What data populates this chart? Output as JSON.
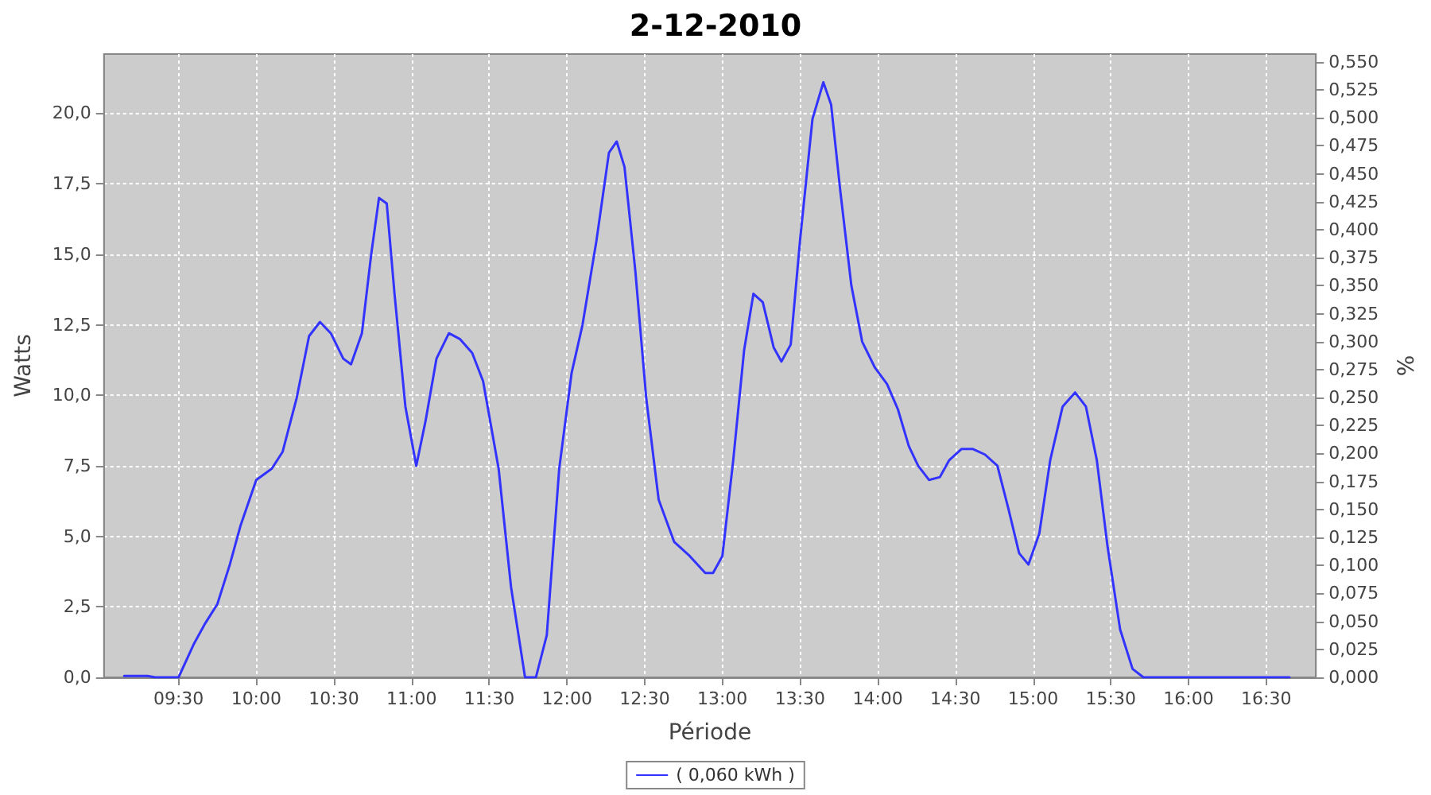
{
  "chart_data": {
    "type": "line",
    "title": "2-12-2010",
    "xlabel": "Période",
    "ylabel": "Watts",
    "y2label": "%",
    "xlim": [
      9.02,
      16.82
    ],
    "xticks": [
      {
        "value": 9.5,
        "label": "09:30"
      },
      {
        "value": 10,
        "label": "10:00"
      },
      {
        "value": 10.5,
        "label": "10:30"
      },
      {
        "value": 11,
        "label": "11:00"
      },
      {
        "value": 11.5,
        "label": "11:30"
      },
      {
        "value": 12,
        "label": "12:00"
      },
      {
        "value": 12.5,
        "label": "12:30"
      },
      {
        "value": 13,
        "label": "13:00"
      },
      {
        "value": 13.5,
        "label": "13:30"
      },
      {
        "value": 14,
        "label": "14:00"
      },
      {
        "value": 14.5,
        "label": "14:30"
      },
      {
        "value": 15,
        "label": "15:00"
      },
      {
        "value": 15.5,
        "label": "15:30"
      },
      {
        "value": 16,
        "label": "16:00"
      },
      {
        "value": 16.5,
        "label": "16:30"
      }
    ],
    "ylim": [
      0,
      22.1
    ],
    "yticks": [
      {
        "value": 0,
        "label": "0,0"
      },
      {
        "value": 2.5,
        "label": "2,5"
      },
      {
        "value": 5,
        "label": "5,0"
      },
      {
        "value": 7.5,
        "label": "7,5"
      },
      {
        "value": 10,
        "label": "10,0"
      },
      {
        "value": 12.5,
        "label": "12,5"
      },
      {
        "value": 15,
        "label": "15,0"
      },
      {
        "value": 17.5,
        "label": "17,5"
      },
      {
        "value": 20,
        "label": "20,0"
      }
    ],
    "y2lim": [
      0,
      0.557
    ],
    "y2ticks": [
      {
        "value": 0,
        "label": "0,000"
      },
      {
        "value": 0.025,
        "label": "0,025"
      },
      {
        "value": 0.05,
        "label": "0,050"
      },
      {
        "value": 0.075,
        "label": "0,075"
      },
      {
        "value": 0.1,
        "label": "0,100"
      },
      {
        "value": 0.125,
        "label": "0,125"
      },
      {
        "value": 0.15,
        "label": "0,150"
      },
      {
        "value": 0.175,
        "label": "0,175"
      },
      {
        "value": 0.2,
        "label": "0,200"
      },
      {
        "value": 0.225,
        "label": "0,225"
      },
      {
        "value": 0.25,
        "label": "0,250"
      },
      {
        "value": 0.275,
        "label": "0,275"
      },
      {
        "value": 0.3,
        "label": "0,300"
      },
      {
        "value": 0.325,
        "label": "0,325"
      },
      {
        "value": 0.35,
        "label": "0,350"
      },
      {
        "value": 0.375,
        "label": "0,375"
      },
      {
        "value": 0.4,
        "label": "0,400"
      },
      {
        "value": 0.425,
        "label": "0,425"
      },
      {
        "value": 0.45,
        "label": "0,450"
      },
      {
        "value": 0.475,
        "label": "0,475"
      },
      {
        "value": 0.5,
        "label": "0,500"
      },
      {
        "value": 0.525,
        "label": "0,525"
      },
      {
        "value": 0.55,
        "label": "0,550"
      }
    ],
    "grid": true,
    "legend": "bottom",
    "marker": "none",
    "line_style": "solid",
    "series": [
      {
        "name": "( 0,060 kWh )",
        "color": "#3333ff",
        "x": [
          9.15,
          9.3,
          9.35,
          9.5,
          9.6,
          9.67,
          9.75,
          9.83,
          9.9,
          10.0,
          10.1,
          10.17,
          10.26,
          10.34,
          10.41,
          10.48,
          10.56,
          10.61,
          10.68,
          10.74,
          10.79,
          10.84,
          10.89,
          10.96,
          11.03,
          11.09,
          11.16,
          11.24,
          11.31,
          11.39,
          11.46,
          11.56,
          11.64,
          11.73,
          11.8,
          11.87,
          11.95,
          12.03,
          12.1,
          12.19,
          12.27,
          12.32,
          12.37,
          12.44,
          12.51,
          12.59,
          12.69,
          12.79,
          12.89,
          12.94,
          13.0,
          13.07,
          13.14,
          13.2,
          13.26,
          13.33,
          13.38,
          13.44,
          13.5,
          13.58,
          13.65,
          13.7,
          13.76,
          13.83,
          13.9,
          13.98,
          14.06,
          14.13,
          14.2,
          14.26,
          14.33,
          14.4,
          14.46,
          14.54,
          14.61,
          14.69,
          14.77,
          14.84,
          14.91,
          14.97,
          15.04,
          15.11,
          15.19,
          15.27,
          15.34,
          15.41,
          15.48,
          15.56,
          15.64,
          15.71,
          16.65
        ],
        "values": [
          0.05,
          0.05,
          0,
          0,
          1.2,
          1.9,
          2.6,
          4.0,
          5.4,
          7.0,
          7.4,
          8.0,
          9.9,
          12.1,
          12.6,
          12.2,
          11.3,
          11.1,
          12.2,
          15.0,
          17.0,
          16.8,
          13.6,
          9.6,
          7.5,
          9.1,
          11.3,
          12.2,
          12.0,
          11.5,
          10.5,
          7.4,
          3.2,
          0,
          0,
          1.5,
          7.4,
          10.8,
          12.5,
          15.5,
          18.6,
          19.0,
          18.1,
          14.4,
          9.9,
          6.3,
          4.8,
          4.3,
          3.7,
          3.7,
          4.3,
          7.7,
          11.6,
          13.6,
          13.3,
          11.7,
          11.2,
          11.8,
          15.5,
          19.8,
          21.1,
          20.3,
          17.2,
          13.9,
          11.9,
          11.0,
          10.4,
          9.5,
          8.2,
          7.5,
          7.0,
          7.1,
          7.7,
          8.1,
          8.1,
          7.9,
          7.5,
          6.0,
          4.4,
          4.0,
          5.1,
          7.7,
          9.6,
          10.1,
          9.6,
          7.7,
          4.6,
          1.7,
          0.3,
          0,
          0
        ]
      }
    ]
  }
}
